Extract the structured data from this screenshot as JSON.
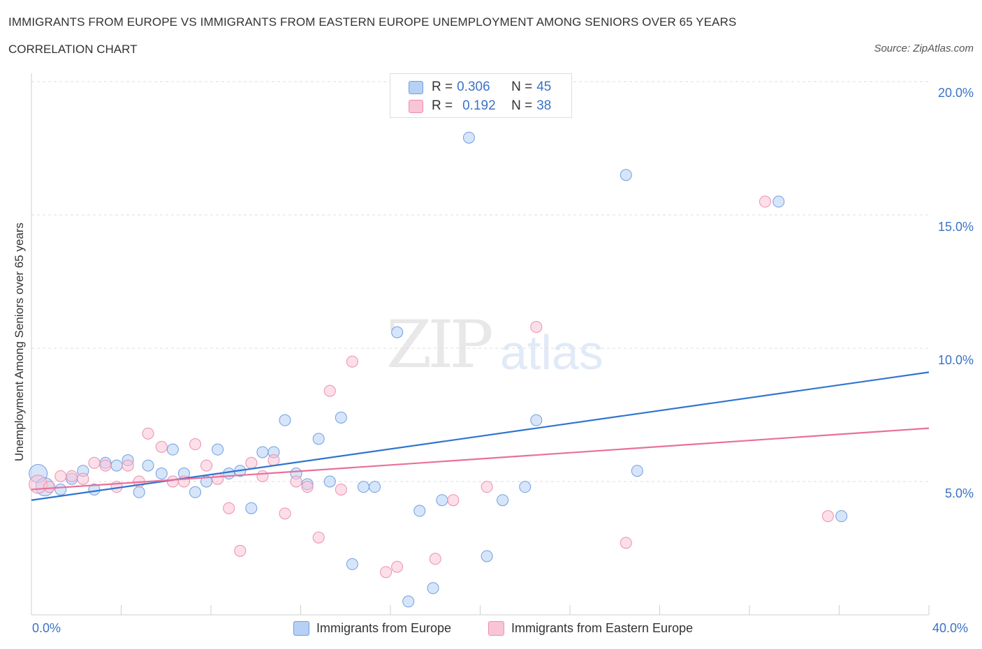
{
  "title": "IMMIGRANTS FROM EUROPE VS IMMIGRANTS FROM EASTERN EUROPE UNEMPLOYMENT AMONG SENIORS OVER 65 YEARS",
  "subtitle": "CORRELATION CHART",
  "source": "Source: ZipAtlas.com",
  "watermark": {
    "zip": "ZIP",
    "atlas": "atlas"
  },
  "legend": {
    "r_label": "R =",
    "n_label": "N =",
    "series": [
      {
        "r": "0.306",
        "n": "45"
      },
      {
        "r": "0.192",
        "n": "38"
      }
    ]
  },
  "bottom_legend": [
    "Immigrants from Europe",
    "Immigrants from Eastern Europe"
  ],
  "colors": {
    "blue_fill": "#b7d0f5",
    "blue_stroke": "#6f9fe0",
    "blue_line": "#2f74d0",
    "pink_fill": "#f9c5d6",
    "pink_stroke": "#ec8fae",
    "pink_line": "#e8709a",
    "tick_text": "#3a73c5"
  },
  "chart_data": {
    "type": "scatter",
    "title": "IMMIGRANTS FROM EUROPE VS IMMIGRANTS FROM EASTERN EUROPE UNEMPLOYMENT AMONG SENIORS OVER 65 YEARS",
    "xlabel": "",
    "ylabel": "Unemployment Among Seniors over 65 years",
    "xlim": [
      0,
      40
    ],
    "ylim": [
      0,
      20
    ],
    "x_tick_labels": [
      "0.0%",
      "40.0%"
    ],
    "y_ticks": [
      5,
      10,
      15,
      20
    ],
    "y_tick_labels": [
      "5.0%",
      "10.0%",
      "15.0%",
      "20.0%"
    ],
    "grid": true,
    "series": [
      {
        "name": "Immigrants from Europe",
        "r": 0.306,
        "n": 45,
        "trend": {
          "x": [
            0,
            40
          ],
          "y": [
            4.3,
            9.1
          ]
        },
        "points": [
          {
            "x": 0.3,
            "y": 5.3,
            "s": 2
          },
          {
            "x": 0.6,
            "y": 4.8,
            "s": 2
          },
          {
            "x": 1.3,
            "y": 4.7,
            "s": 1
          },
          {
            "x": 1.8,
            "y": 5.1,
            "s": 1
          },
          {
            "x": 2.3,
            "y": 5.4,
            "s": 1
          },
          {
            "x": 2.8,
            "y": 4.7,
            "s": 1
          },
          {
            "x": 3.3,
            "y": 5.7,
            "s": 1
          },
          {
            "x": 3.8,
            "y": 5.6,
            "s": 1
          },
          {
            "x": 4.3,
            "y": 5.8,
            "s": 1
          },
          {
            "x": 4.8,
            "y": 4.6,
            "s": 1
          },
          {
            "x": 5.2,
            "y": 5.6,
            "s": 1
          },
          {
            "x": 5.8,
            "y": 5.3,
            "s": 1
          },
          {
            "x": 6.3,
            "y": 6.2,
            "s": 1
          },
          {
            "x": 6.8,
            "y": 5.3,
            "s": 1
          },
          {
            "x": 7.3,
            "y": 4.6,
            "s": 1
          },
          {
            "x": 7.8,
            "y": 5.0,
            "s": 1
          },
          {
            "x": 8.3,
            "y": 6.2,
            "s": 1
          },
          {
            "x": 8.8,
            "y": 5.3,
            "s": 1
          },
          {
            "x": 9.3,
            "y": 5.4,
            "s": 1
          },
          {
            "x": 9.8,
            "y": 4.0,
            "s": 1
          },
          {
            "x": 10.3,
            "y": 6.1,
            "s": 1
          },
          {
            "x": 10.8,
            "y": 6.1,
            "s": 1
          },
          {
            "x": 11.3,
            "y": 7.3,
            "s": 1
          },
          {
            "x": 11.8,
            "y": 5.3,
            "s": 1
          },
          {
            "x": 12.3,
            "y": 4.9,
            "s": 1
          },
          {
            "x": 12.8,
            "y": 6.6,
            "s": 1
          },
          {
            "x": 13.3,
            "y": 5.0,
            "s": 1
          },
          {
            "x": 13.8,
            "y": 7.4,
            "s": 1
          },
          {
            "x": 14.3,
            "y": 1.9,
            "s": 1
          },
          {
            "x": 14.8,
            "y": 4.8,
            "s": 1
          },
          {
            "x": 15.3,
            "y": 4.8,
            "s": 1
          },
          {
            "x": 16.3,
            "y": 10.6,
            "s": 1
          },
          {
            "x": 16.8,
            "y": 0.5,
            "s": 1
          },
          {
            "x": 17.3,
            "y": 3.9,
            "s": 1
          },
          {
            "x": 17.9,
            "y": 1.0,
            "s": 1
          },
          {
            "x": 18.3,
            "y": 4.3,
            "s": 1
          },
          {
            "x": 19.5,
            "y": 17.9,
            "s": 1
          },
          {
            "x": 20.3,
            "y": 2.2,
            "s": 1
          },
          {
            "x": 21.0,
            "y": 4.3,
            "s": 1
          },
          {
            "x": 22.0,
            "y": 4.8,
            "s": 1
          },
          {
            "x": 22.5,
            "y": 7.3,
            "s": 1
          },
          {
            "x": 26.5,
            "y": 16.5,
            "s": 1
          },
          {
            "x": 27.0,
            "y": 5.4,
            "s": 1
          },
          {
            "x": 33.3,
            "y": 15.5,
            "s": 1
          },
          {
            "x": 36.1,
            "y": 3.7,
            "s": 1
          }
        ]
      },
      {
        "name": "Immigrants from Eastern Europe",
        "r": 0.192,
        "n": 38,
        "trend": {
          "x": [
            0,
            40
          ],
          "y": [
            4.7,
            7.0
          ]
        },
        "points": [
          {
            "x": 0.3,
            "y": 4.9,
            "s": 2
          },
          {
            "x": 0.8,
            "y": 4.8,
            "s": 1
          },
          {
            "x": 1.3,
            "y": 5.2,
            "s": 1
          },
          {
            "x": 1.8,
            "y": 5.2,
            "s": 1
          },
          {
            "x": 2.3,
            "y": 5.1,
            "s": 1
          },
          {
            "x": 2.8,
            "y": 5.7,
            "s": 1
          },
          {
            "x": 3.3,
            "y": 5.6,
            "s": 1
          },
          {
            "x": 3.8,
            "y": 4.8,
            "s": 1
          },
          {
            "x": 4.3,
            "y": 5.6,
            "s": 1
          },
          {
            "x": 4.8,
            "y": 5.0,
            "s": 1
          },
          {
            "x": 5.2,
            "y": 6.8,
            "s": 1
          },
          {
            "x": 5.8,
            "y": 6.3,
            "s": 1
          },
          {
            "x": 6.3,
            "y": 5.0,
            "s": 1
          },
          {
            "x": 6.8,
            "y": 5.0,
            "s": 1
          },
          {
            "x": 7.3,
            "y": 6.4,
            "s": 1
          },
          {
            "x": 7.8,
            "y": 5.6,
            "s": 1
          },
          {
            "x": 8.3,
            "y": 5.1,
            "s": 1
          },
          {
            "x": 8.8,
            "y": 4.0,
            "s": 1
          },
          {
            "x": 9.3,
            "y": 2.4,
            "s": 1
          },
          {
            "x": 9.8,
            "y": 5.7,
            "s": 1
          },
          {
            "x": 10.3,
            "y": 5.2,
            "s": 1
          },
          {
            "x": 10.8,
            "y": 5.8,
            "s": 1
          },
          {
            "x": 11.3,
            "y": 3.8,
            "s": 1
          },
          {
            "x": 11.8,
            "y": 5.0,
            "s": 1
          },
          {
            "x": 12.3,
            "y": 4.8,
            "s": 1
          },
          {
            "x": 12.8,
            "y": 2.9,
            "s": 1
          },
          {
            "x": 13.3,
            "y": 8.4,
            "s": 1
          },
          {
            "x": 13.8,
            "y": 4.7,
            "s": 1
          },
          {
            "x": 14.3,
            "y": 9.5,
            "s": 1
          },
          {
            "x": 15.8,
            "y": 1.6,
            "s": 1
          },
          {
            "x": 16.3,
            "y": 1.8,
            "s": 1
          },
          {
            "x": 18.0,
            "y": 2.1,
            "s": 1
          },
          {
            "x": 18.8,
            "y": 4.3,
            "s": 1
          },
          {
            "x": 20.3,
            "y": 4.8,
            "s": 1
          },
          {
            "x": 22.5,
            "y": 10.8,
            "s": 1
          },
          {
            "x": 26.5,
            "y": 2.7,
            "s": 1
          },
          {
            "x": 32.7,
            "y": 15.5,
            "s": 1
          },
          {
            "x": 35.5,
            "y": 3.7,
            "s": 1
          }
        ]
      }
    ]
  }
}
